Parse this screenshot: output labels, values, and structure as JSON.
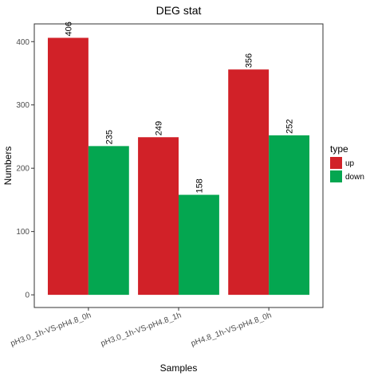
{
  "colors": {
    "up": "#d12128",
    "down": "#04a650"
  },
  "chart_data": {
    "type": "bar",
    "title": "DEG stat",
    "xlabel": "Samples",
    "ylabel": "Numbers",
    "categories": [
      "pH3.0_1h-VS-pH4.8_0h",
      "pH3.0_1h-VS-pH4.8_1h",
      "pH4.8_1h-VS-pH4.8_0h"
    ],
    "series": [
      {
        "name": "up",
        "values": [
          406,
          249,
          356
        ]
      },
      {
        "name": "down",
        "values": [
          235,
          158,
          252
        ]
      }
    ],
    "ylim": [
      -20,
      428
    ],
    "yticks": [
      "0",
      "100",
      "200",
      "300",
      "400"
    ],
    "grid": false,
    "legend": {
      "title": "type",
      "position": "right"
    }
  }
}
